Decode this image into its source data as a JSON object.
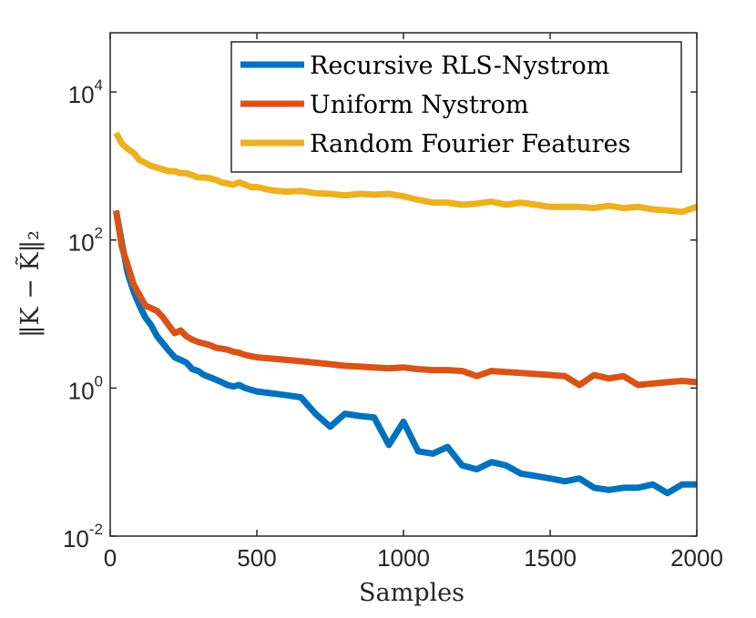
{
  "chart_data": {
    "type": "line",
    "xlabel": "Samples",
    "ylabel": "‖K − K̃‖₂",
    "y_scale": "log",
    "xlim": [
      0,
      2000
    ],
    "ylim_log10": [
      -2,
      4.8
    ],
    "grid": false,
    "legend_position": "top-right",
    "x_ticks": [
      {
        "value": 0,
        "label": "0"
      },
      {
        "value": 500,
        "label": "500"
      },
      {
        "value": 1000,
        "label": "1000"
      },
      {
        "value": 1500,
        "label": "1500"
      },
      {
        "value": 2000,
        "label": "2000"
      }
    ],
    "y_ticks": [
      {
        "exp": -2,
        "base": "10",
        "sup": "-2"
      },
      {
        "exp": 0,
        "base": "10",
        "sup": "0"
      },
      {
        "exp": 2,
        "base": "10",
        "sup": "2"
      },
      {
        "exp": 4,
        "base": "10",
        "sup": "4"
      }
    ],
    "series": [
      {
        "name": "Recursive RLS-Nystrom",
        "color": "#0072bd",
        "x": [
          20,
          40,
          60,
          80,
          100,
          120,
          140,
          160,
          180,
          200,
          220,
          240,
          260,
          280,
          300,
          320,
          340,
          360,
          380,
          400,
          420,
          440,
          460,
          480,
          500,
          550,
          600,
          650,
          700,
          750,
          800,
          850,
          900,
          950,
          1000,
          1050,
          1100,
          1150,
          1200,
          1250,
          1300,
          1350,
          1400,
          1450,
          1500,
          1550,
          1600,
          1650,
          1700,
          1750,
          1800,
          1850,
          1900,
          1950,
          2000
        ],
        "values": [
          250,
          90,
          35,
          20,
          13,
          9,
          7,
          5,
          4,
          3.2,
          2.6,
          2.4,
          2.2,
          1.8,
          1.7,
          1.5,
          1.4,
          1.3,
          1.2,
          1.1,
          1.05,
          1.1,
          1.0,
          0.95,
          0.9,
          0.85,
          0.8,
          0.75,
          0.45,
          0.3,
          0.45,
          0.42,
          0.4,
          0.17,
          0.35,
          0.14,
          0.13,
          0.16,
          0.09,
          0.08,
          0.1,
          0.09,
          0.07,
          0.065,
          0.06,
          0.055,
          0.06,
          0.045,
          0.042,
          0.045,
          0.045,
          0.05,
          0.038,
          0.05,
          0.05
        ]
      },
      {
        "name": "Uniform Nystrom",
        "color": "#d95319",
        "x": [
          20,
          40,
          60,
          80,
          100,
          120,
          140,
          160,
          180,
          200,
          220,
          240,
          260,
          280,
          300,
          320,
          340,
          360,
          380,
          400,
          420,
          440,
          460,
          480,
          500,
          550,
          600,
          650,
          700,
          750,
          800,
          850,
          900,
          950,
          1000,
          1050,
          1100,
          1150,
          1200,
          1250,
          1300,
          1350,
          1400,
          1450,
          1500,
          1550,
          1600,
          1650,
          1700,
          1750,
          1800,
          1850,
          1900,
          1950,
          2000
        ],
        "values": [
          250,
          80,
          45,
          25,
          18,
          13,
          12,
          11,
          9,
          7,
          5.5,
          6,
          5,
          4.5,
          4.2,
          4,
          3.8,
          3.5,
          3.4,
          3.3,
          3.1,
          3.0,
          2.8,
          2.7,
          2.6,
          2.5,
          2.4,
          2.3,
          2.2,
          2.1,
          2.0,
          1.95,
          1.9,
          1.85,
          1.9,
          1.8,
          1.75,
          1.75,
          1.7,
          1.45,
          1.7,
          1.65,
          1.6,
          1.55,
          1.5,
          1.45,
          1.1,
          1.5,
          1.35,
          1.45,
          1.1,
          1.15,
          1.2,
          1.25,
          1.2
        ]
      },
      {
        "name": "Random Fourier Features",
        "color": "#edb120",
        "x": [
          20,
          40,
          60,
          80,
          100,
          120,
          140,
          160,
          180,
          200,
          220,
          240,
          260,
          280,
          300,
          320,
          340,
          360,
          380,
          400,
          420,
          440,
          460,
          480,
          500,
          550,
          600,
          650,
          700,
          750,
          800,
          850,
          900,
          950,
          1000,
          1050,
          1100,
          1150,
          1200,
          1250,
          1300,
          1350,
          1400,
          1450,
          1500,
          1550,
          1600,
          1650,
          1700,
          1750,
          1800,
          1850,
          1900,
          1950,
          2000
        ],
        "values": [
          2800,
          2000,
          1700,
          1500,
          1200,
          1100,
          1000,
          950,
          900,
          850,
          850,
          800,
          800,
          750,
          700,
          700,
          680,
          650,
          600,
          580,
          560,
          600,
          560,
          520,
          520,
          470,
          450,
          460,
          430,
          420,
          400,
          420,
          410,
          420,
          390,
          350,
          320,
          320,
          300,
          310,
          330,
          300,
          320,
          300,
          280,
          280,
          280,
          270,
          290,
          270,
          280,
          260,
          250,
          240,
          280
        ]
      }
    ]
  }
}
